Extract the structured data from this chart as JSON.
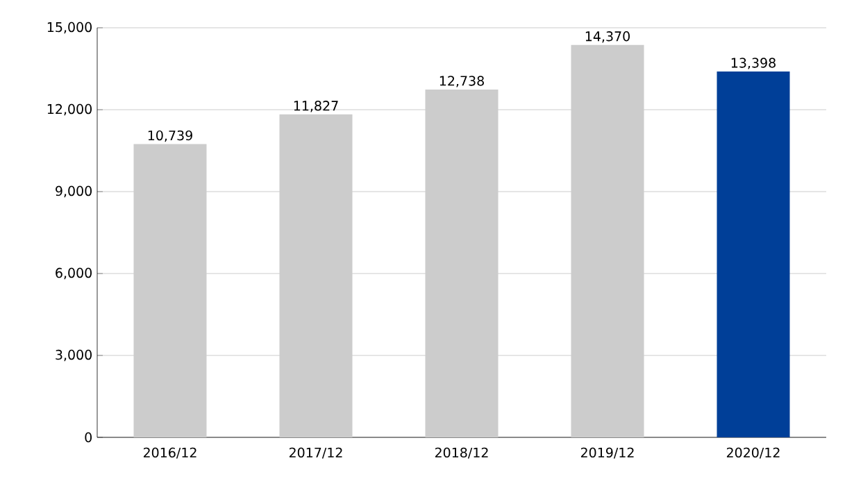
{
  "chart_data": {
    "type": "bar",
    "categories": [
      "2016/12",
      "2017/12",
      "2018/12",
      "2019/12",
      "2020/12"
    ],
    "values": [
      10739,
      11827,
      12738,
      14370,
      13398
    ],
    "colors": [
      "#cccccc",
      "#cccccc",
      "#cccccc",
      "#cccccc",
      "#003f98"
    ],
    "value_labels": [
      "10,739",
      "11,827",
      "12,738",
      "14,370",
      "13,398"
    ],
    "ylim": [
      0,
      15000
    ],
    "yticks": [
      0,
      {
        "value": 3000,
        "label": "3,000"
      },
      {
        "value": 6000,
        "label": "6,000"
      },
      {
        "value": 9000,
        "label": "9,000"
      },
      {
        "value": 12000,
        "label": "12,000"
      },
      {
        "value": 15000,
        "label": "15,000"
      }
    ],
    "grid": "y"
  }
}
